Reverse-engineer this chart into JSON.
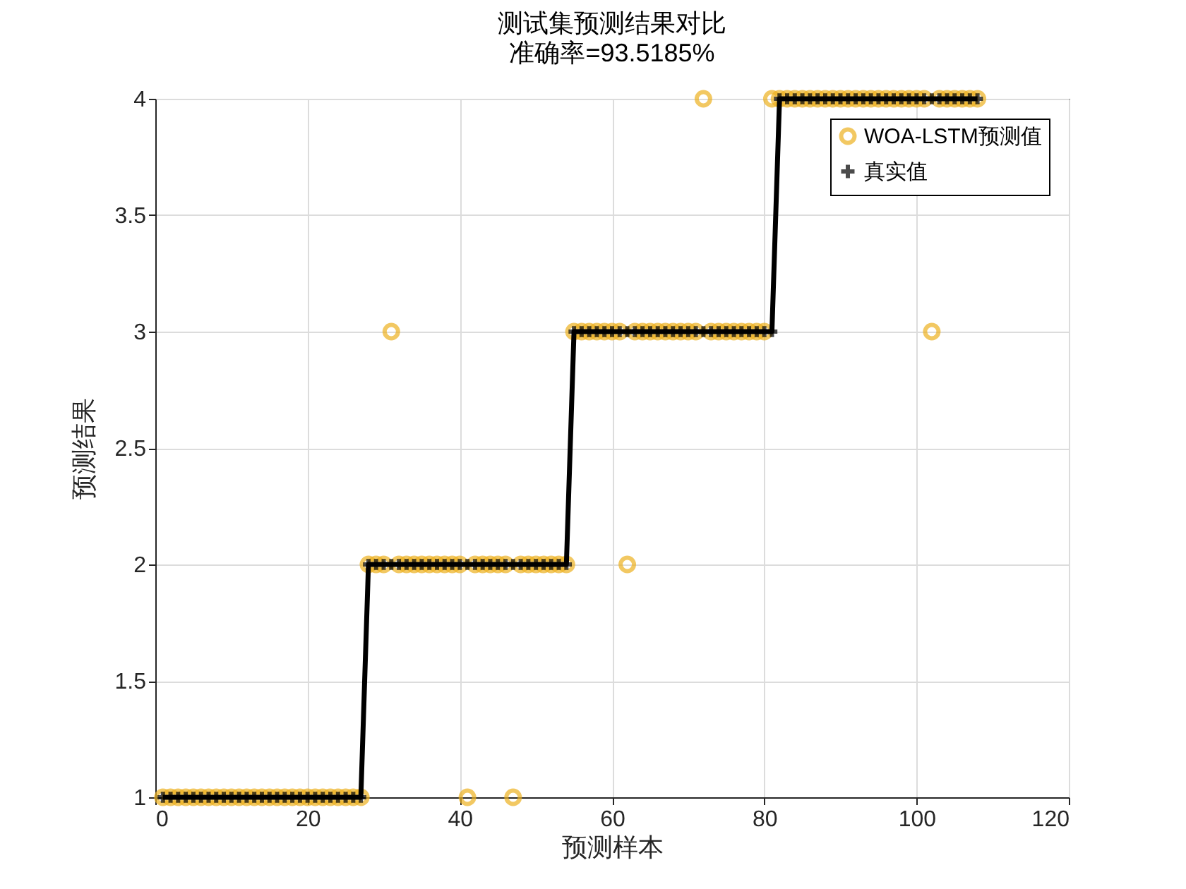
{
  "chart_data": {
    "type": "scatter",
    "title": "测试集预测结果对比",
    "subtitle": "准确率=93.5185%",
    "xlabel": "预测样本",
    "ylabel": "预测结果",
    "x": [
      1,
      2,
      3,
      4,
      5,
      6,
      7,
      8,
      9,
      10,
      11,
      12,
      13,
      14,
      15,
      16,
      17,
      18,
      19,
      20,
      21,
      22,
      23,
      24,
      25,
      26,
      27,
      28,
      29,
      30,
      31,
      32,
      33,
      34,
      35,
      36,
      37,
      38,
      39,
      40,
      41,
      42,
      43,
      44,
      45,
      46,
      47,
      48,
      49,
      50,
      51,
      52,
      53,
      54,
      55,
      56,
      57,
      58,
      59,
      60,
      61,
      62,
      63,
      64,
      65,
      66,
      67,
      68,
      69,
      70,
      71,
      72,
      73,
      74,
      75,
      76,
      77,
      78,
      79,
      80,
      81,
      82,
      83,
      84,
      85,
      86,
      87,
      88,
      89,
      90,
      91,
      92,
      93,
      94,
      95,
      96,
      97,
      98,
      99,
      100,
      101,
      102,
      103,
      104,
      105,
      106,
      107,
      108
    ],
    "series": [
      {
        "name": "WOA-LSTM预测值",
        "marker": "circle",
        "color": "#edb120",
        "values": [
          1,
          1,
          1,
          1,
          1,
          1,
          1,
          1,
          1,
          1,
          1,
          1,
          1,
          1,
          1,
          1,
          1,
          1,
          1,
          1,
          1,
          1,
          1,
          1,
          1,
          1,
          1,
          2,
          2,
          2,
          3,
          2,
          2,
          2,
          2,
          2,
          2,
          2,
          2,
          2,
          1,
          2,
          2,
          2,
          2,
          2,
          1,
          2,
          2,
          2,
          2,
          2,
          2,
          2,
          3,
          3,
          3,
          3,
          3,
          3,
          3,
          2,
          3,
          3,
          3,
          3,
          3,
          3,
          3,
          3,
          3,
          4,
          3,
          3,
          3,
          3,
          3,
          3,
          3,
          3,
          4,
          4,
          4,
          4,
          4,
          4,
          4,
          4,
          4,
          4,
          4,
          4,
          4,
          4,
          4,
          4,
          4,
          4,
          4,
          4,
          4,
          3,
          4,
          4,
          4,
          4,
          4,
          4
        ]
      },
      {
        "name": "真实值",
        "type": "line",
        "marker": "cross",
        "line_style": "solid",
        "color": "#000000",
        "values": [
          1,
          1,
          1,
          1,
          1,
          1,
          1,
          1,
          1,
          1,
          1,
          1,
          1,
          1,
          1,
          1,
          1,
          1,
          1,
          1,
          1,
          1,
          1,
          1,
          1,
          1,
          1,
          2,
          2,
          2,
          2,
          2,
          2,
          2,
          2,
          2,
          2,
          2,
          2,
          2,
          2,
          2,
          2,
          2,
          2,
          2,
          2,
          2,
          2,
          2,
          2,
          2,
          2,
          2,
          3,
          3,
          3,
          3,
          3,
          3,
          3,
          3,
          3,
          3,
          3,
          3,
          3,
          3,
          3,
          3,
          3,
          3,
          3,
          3,
          3,
          3,
          3,
          3,
          3,
          3,
          3,
          4,
          4,
          4,
          4,
          4,
          4,
          4,
          4,
          4,
          4,
          4,
          4,
          4,
          4,
          4,
          4,
          4,
          4,
          4,
          4,
          4,
          4,
          4,
          4,
          4,
          4,
          4
        ]
      }
    ],
    "xlim": [
      0,
      120
    ],
    "xticks": [
      0,
      20,
      40,
      60,
      80,
      100,
      120
    ],
    "ylim": [
      1,
      4
    ],
    "yticks": [
      1,
      1.5,
      2,
      2.5,
      3,
      3.5,
      4
    ],
    "grid": true,
    "legend": "top right"
  }
}
